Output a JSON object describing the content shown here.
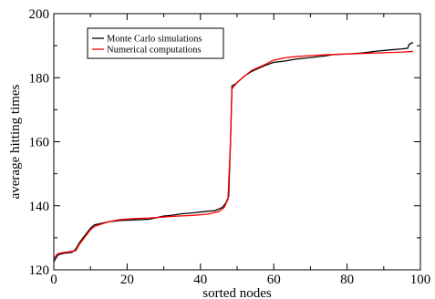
{
  "chart_data": {
    "type": "line",
    "title": "",
    "xlabel": "sorted nodes",
    "ylabel": "average hitting times",
    "xlim": [
      0,
      100
    ],
    "ylim": [
      120,
      200
    ],
    "x_ticks": [
      0,
      20,
      40,
      60,
      80,
      100
    ],
    "y_ticks": [
      120,
      140,
      160,
      180,
      200
    ],
    "grid": false,
    "legend_position": "top-left",
    "series": [
      {
        "name": "Monte Carlo simulations",
        "color": "#000000",
        "points": [
          [
            0,
            122.5
          ],
          [
            1,
            124.5
          ],
          [
            2,
            125.0
          ],
          [
            3,
            125.2
          ],
          [
            5,
            125.5
          ],
          [
            6,
            126.5
          ],
          [
            7,
            128.5
          ],
          [
            8,
            130.0
          ],
          [
            9,
            131.5
          ],
          [
            10,
            133.0
          ],
          [
            11,
            134.0
          ],
          [
            13,
            134.5
          ],
          [
            15,
            135.0
          ],
          [
            18,
            135.4
          ],
          [
            22,
            135.6
          ],
          [
            26,
            135.8
          ],
          [
            28,
            136.3
          ],
          [
            30,
            136.8
          ],
          [
            32,
            137.0
          ],
          [
            35,
            137.5
          ],
          [
            38,
            137.8
          ],
          [
            41,
            138.2
          ],
          [
            44,
            138.5
          ],
          [
            46,
            139.5
          ],
          [
            47,
            141.0
          ],
          [
            47.7,
            143.0
          ],
          [
            48.2,
            160.0
          ],
          [
            48.6,
            177.5
          ],
          [
            49.5,
            178.0
          ],
          [
            51,
            179.5
          ],
          [
            52,
            180.5
          ],
          [
            54,
            182.0
          ],
          [
            56,
            183.0
          ],
          [
            58,
            184.0
          ],
          [
            60,
            184.8
          ],
          [
            63,
            185.2
          ],
          [
            66,
            185.8
          ],
          [
            70,
            186.3
          ],
          [
            74,
            186.8
          ],
          [
            76,
            187.2
          ],
          [
            80,
            187.4
          ],
          [
            84,
            187.7
          ],
          [
            88,
            188.3
          ],
          [
            92,
            188.7
          ],
          [
            95,
            189.0
          ],
          [
            96.5,
            189.2
          ],
          [
            97,
            190.5
          ],
          [
            98,
            191.0
          ]
        ]
      },
      {
        "name": "Numerical computations",
        "color": "#ff0000",
        "points": [
          [
            0,
            123.5
          ],
          [
            1,
            125.0
          ],
          [
            2,
            125.3
          ],
          [
            4,
            125.6
          ],
          [
            6,
            126.0
          ],
          [
            7,
            128.0
          ],
          [
            8,
            129.5
          ],
          [
            9,
            131.0
          ],
          [
            10,
            132.5
          ],
          [
            11,
            133.5
          ],
          [
            13,
            134.3
          ],
          [
            15,
            135.0
          ],
          [
            18,
            135.7
          ],
          [
            22,
            136.0
          ],
          [
            26,
            136.2
          ],
          [
            30,
            136.5
          ],
          [
            34,
            136.8
          ],
          [
            38,
            137.0
          ],
          [
            42,
            137.4
          ],
          [
            45,
            138.2
          ],
          [
            46.5,
            139.5
          ],
          [
            47.5,
            142.0
          ],
          [
            48.2,
            160.0
          ],
          [
            48.6,
            176.5
          ],
          [
            50,
            178.5
          ],
          [
            52,
            180.5
          ],
          [
            54,
            182.3
          ],
          [
            57,
            183.8
          ],
          [
            60,
            185.5
          ],
          [
            63,
            186.2
          ],
          [
            66,
            186.6
          ],
          [
            70,
            186.9
          ],
          [
            75,
            187.2
          ],
          [
            80,
            187.4
          ],
          [
            85,
            187.6
          ],
          [
            90,
            187.8
          ],
          [
            95,
            188.0
          ],
          [
            98,
            188.2
          ]
        ]
      }
    ]
  }
}
